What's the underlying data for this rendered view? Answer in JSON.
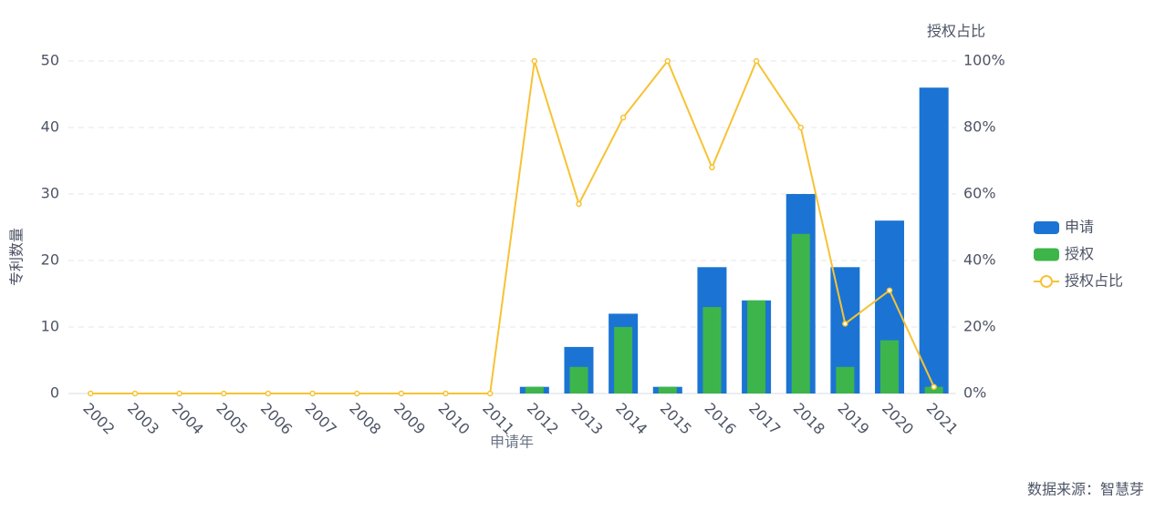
{
  "chart_data": {
    "type": "bar-line",
    "y_axis_label": "专利数量",
    "y2_axis_label": "授权占比",
    "x_axis_label": "申请年",
    "source": "数据来源：智慧芽",
    "categories": [
      "2002",
      "2003",
      "2004",
      "2005",
      "2006",
      "2007",
      "2008",
      "2009",
      "2010",
      "2011",
      "2012",
      "2013",
      "2014",
      "2015",
      "2016",
      "2017",
      "2018",
      "2019",
      "2020",
      "2021"
    ],
    "series": [
      {
        "name": "申请",
        "type": "bar",
        "color": "#1b74d3",
        "values": [
          0,
          0,
          0,
          0,
          0,
          0,
          0,
          0,
          0,
          0,
          1,
          7,
          12,
          1,
          19,
          14,
          30,
          19,
          26,
          46
        ]
      },
      {
        "name": "授权",
        "type": "bar",
        "color": "#3db54b",
        "values": [
          0,
          0,
          0,
          0,
          0,
          0,
          0,
          0,
          0,
          0,
          1,
          4,
          10,
          1,
          13,
          14,
          24,
          4,
          8,
          1
        ]
      },
      {
        "name": "授权占比",
        "type": "line",
        "axis": "y2",
        "color": "#f7c234",
        "values": [
          0,
          0,
          0,
          0,
          0,
          0,
          0,
          0,
          0,
          0,
          100,
          57,
          83,
          100,
          68,
          100,
          80,
          21,
          31,
          2
        ]
      }
    ],
    "ylim": [
      0,
      50
    ],
    "yticks": [
      0,
      10,
      20,
      30,
      40,
      50
    ],
    "y2lim": [
      0,
      100
    ],
    "y2ticks": [
      {
        "value": 0,
        "label": "0%"
      },
      {
        "value": 20,
        "label": "20%"
      },
      {
        "value": 40,
        "label": "40%"
      },
      {
        "value": 60,
        "label": "60%"
      },
      {
        "value": 80,
        "label": "80%"
      },
      {
        "value": 100,
        "label": "100%"
      }
    ],
    "grid": true
  }
}
